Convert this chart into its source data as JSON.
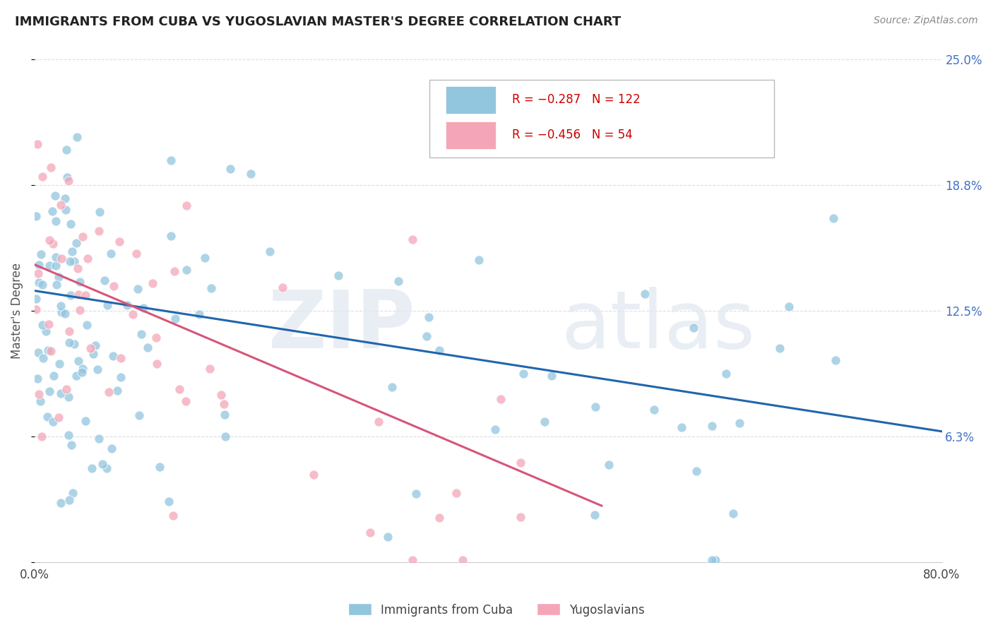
{
  "title": "IMMIGRANTS FROM CUBA VS YUGOSLAVIAN MASTER'S DEGREE CORRELATION CHART",
  "source_text": "Source: ZipAtlas.com",
  "ylabel": "Master's Degree",
  "xlim": [
    0.0,
    0.8
  ],
  "ylim": [
    0.0,
    0.25
  ],
  "yticks": [
    0.0,
    0.0625,
    0.125,
    0.1875,
    0.25
  ],
  "ytick_labels": [
    "",
    "6.3%",
    "12.5%",
    "18.8%",
    "25.0%"
  ],
  "xtick_labels": [
    "0.0%",
    "80.0%"
  ],
  "xticks": [
    0.0,
    0.8
  ],
  "watermark_zip": "ZIP",
  "watermark_atlas": "atlas",
  "cuba_color": "#92c5de",
  "yugoslav_color": "#f4a6b8",
  "cuba_line_color": "#2166ac",
  "yugoslav_line_color": "#d6567a",
  "cuba_line_start_x": 0.0,
  "cuba_line_start_y": 0.135,
  "cuba_line_end_x": 0.8,
  "cuba_line_end_y": 0.065,
  "yugoslav_line_start_x": 0.0,
  "yugoslav_line_start_y": 0.148,
  "yugoslav_line_end_x": 0.5,
  "yugoslav_line_end_y": 0.028,
  "background_color": "#ffffff",
  "grid_color": "#dddddd",
  "title_color": "#222222",
  "axis_label_color": "#555555",
  "tick_label_color": "#444444",
  "right_tick_color": "#4472c4",
  "legend_r1": "R = −0.287",
  "legend_n1": "N = 122",
  "legend_r2": "R = −0.456",
  "legend_n2": "N = 54",
  "legend_text_color": "#cc0000",
  "source_color": "#888888"
}
